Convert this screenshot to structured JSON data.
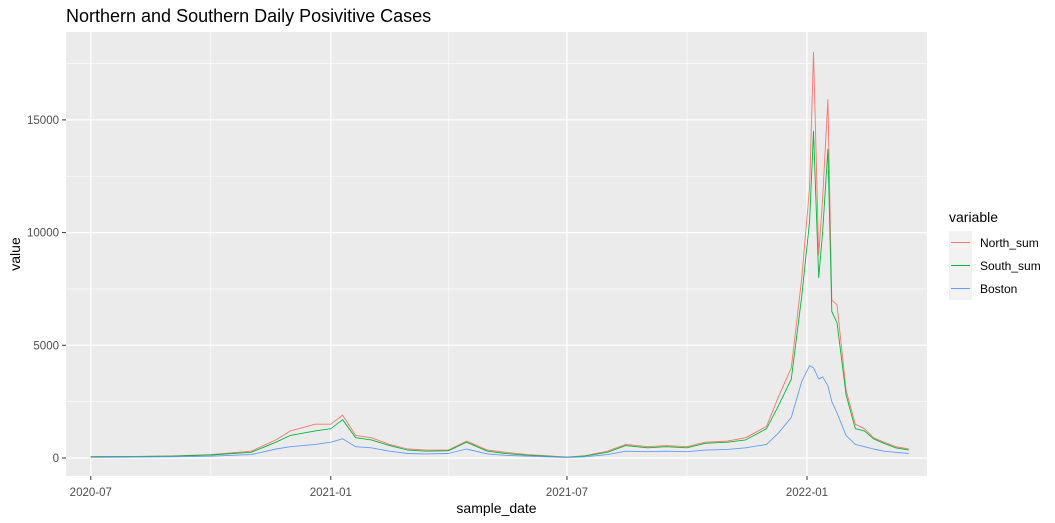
{
  "chart_data": {
    "type": "line",
    "title": "Northern and Southern Daily Posivitive Cases",
    "xlabel": "sample_date",
    "ylabel": "value",
    "x_ticks": [
      "2020-07",
      "2021-01",
      "2021-07",
      "2022-01"
    ],
    "y_ticks": [
      "0",
      "5000",
      "10000",
      "15000"
    ],
    "ylim": [
      -800,
      18900
    ],
    "xlim": [
      "2020-06-12",
      "2022-04-03"
    ],
    "grid": true,
    "legend_title": "variable",
    "legend_position": "right",
    "x": [
      "2020-07-01",
      "2020-08-01",
      "2020-09-01",
      "2020-10-01",
      "2020-11-01",
      "2020-11-20",
      "2020-12-01",
      "2020-12-20",
      "2021-01-01",
      "2021-01-10",
      "2021-01-20",
      "2021-02-01",
      "2021-02-15",
      "2021-03-01",
      "2021-03-15",
      "2021-04-01",
      "2021-04-15",
      "2021-05-01",
      "2021-05-15",
      "2021-06-01",
      "2021-06-15",
      "2021-07-01",
      "2021-07-15",
      "2021-08-01",
      "2021-08-15",
      "2021-09-01",
      "2021-09-15",
      "2021-10-01",
      "2021-10-15",
      "2021-11-01",
      "2021-11-15",
      "2021-12-01",
      "2021-12-10",
      "2021-12-20",
      "2021-12-28",
      "2022-01-03",
      "2022-01-06",
      "2022-01-10",
      "2022-01-13",
      "2022-01-17",
      "2022-01-20",
      "2022-01-24",
      "2022-01-31",
      "2022-02-07",
      "2022-02-14",
      "2022-02-21",
      "2022-03-01",
      "2022-03-10",
      "2022-03-20"
    ],
    "series": [
      {
        "name": "North_sum",
        "color": "#F8766D",
        "values": [
          60,
          70,
          90,
          150,
          300,
          800,
          1200,
          1500,
          1500,
          1900,
          1000,
          900,
          600,
          400,
          350,
          350,
          750,
          350,
          250,
          150,
          100,
          40,
          100,
          300,
          600,
          500,
          550,
          500,
          700,
          750,
          900,
          1400,
          2700,
          4000,
          8000,
          12000,
          18000,
          9000,
          11500,
          15900,
          7000,
          6800,
          3000,
          1500,
          1300,
          900,
          700,
          500,
          400
        ]
      },
      {
        "name": "South_sum",
        "color": "#00BA38",
        "values": [
          50,
          60,
          80,
          130,
          250,
          700,
          1000,
          1200,
          1300,
          1700,
          900,
          800,
          550,
          350,
          300,
          320,
          700,
          300,
          200,
          120,
          80,
          30,
          90,
          250,
          550,
          450,
          500,
          450,
          650,
          700,
          800,
          1300,
          2300,
          3500,
          7200,
          10500,
          14500,
          8000,
          10000,
          13700,
          6500,
          6000,
          2800,
          1300,
          1200,
          850,
          650,
          450,
          350
        ]
      },
      {
        "name": "Boston",
        "color": "#619CFF",
        "values": [
          30,
          40,
          50,
          80,
          150,
          400,
          500,
          600,
          700,
          850,
          500,
          450,
          300,
          200,
          180,
          200,
          400,
          180,
          120,
          80,
          50,
          20,
          50,
          150,
          300,
          280,
          300,
          280,
          350,
          380,
          450,
          600,
          1100,
          1800,
          3400,
          4100,
          4000,
          3500,
          3600,
          3200,
          2500,
          2000,
          1000,
          600,
          500,
          400,
          300,
          250,
          200
        ]
      }
    ]
  }
}
